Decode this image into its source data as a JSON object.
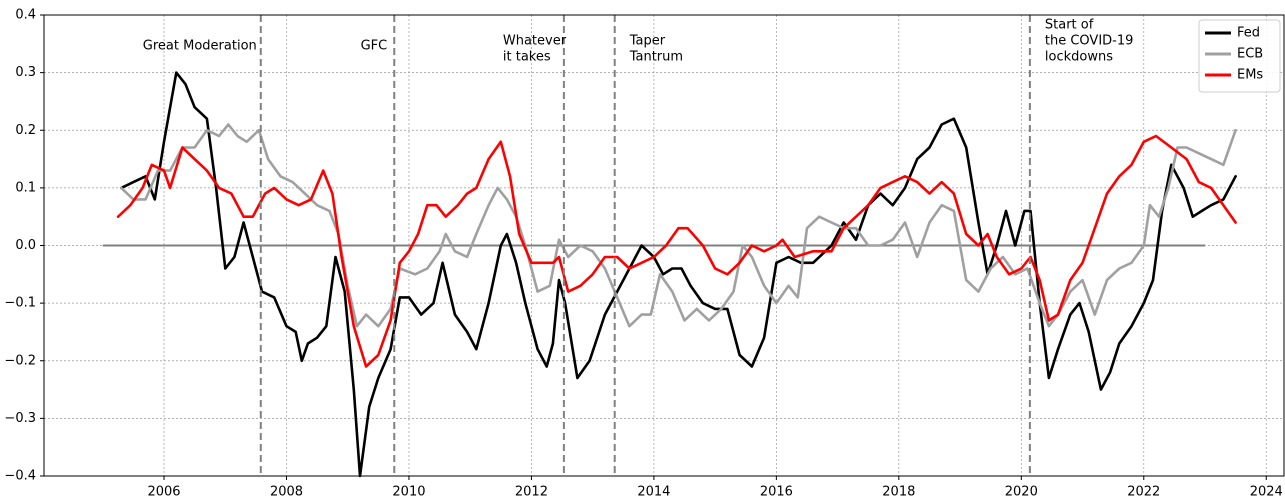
{
  "chart_data": {
    "type": "line",
    "xlim": [
      2004.04,
      2024.29
    ],
    "ylim": [
      -0.4,
      0.4
    ],
    "xticks": [
      2006,
      2008,
      2010,
      2012,
      2014,
      2016,
      2018,
      2020,
      2022,
      2024
    ],
    "yticks": [
      {
        "value": -0.4,
        "label": "−0.4"
      },
      {
        "value": -0.3,
        "label": "−0.3"
      },
      {
        "value": -0.2,
        "label": "−0.2"
      },
      {
        "value": -0.1,
        "label": "−0.1"
      },
      {
        "value": 0,
        "label": "0.0"
      },
      0.1,
      0.2,
      0.3,
      0.4
    ],
    "grid": true,
    "legend": "upper right",
    "zero_line": {
      "y": 0,
      "x": [
        2005,
        2023
      ],
      "color": "#808080"
    },
    "events": [
      {
        "x": 2007.58,
        "label": [
          "Great Moderation"
        ]
      },
      {
        "x": 2009.76,
        "label": [
          "GFC"
        ]
      },
      {
        "x": 2012.53,
        "label": [
          "Whatever",
          "it takes"
        ]
      },
      {
        "x": 2013.36,
        "label": [
          "Taper",
          "Tantrum"
        ]
      },
      {
        "x": 2020.14,
        "label": [
          "Start of",
          "the COVID-19",
          "lockdowns"
        ]
      }
    ],
    "series": [
      {
        "name": "Fed",
        "color": "#000000",
        "x": [
          2005.3,
          2005.5,
          2005.7,
          2005.85,
          2006.0,
          2006.2,
          2006.35,
          2006.5,
          2006.7,
          2006.85,
          2007.0,
          2007.15,
          2007.3,
          2007.45,
          2007.6,
          2007.8,
          2008.0,
          2008.15,
          2008.25,
          2008.35,
          2008.5,
          2008.65,
          2008.8,
          2008.95,
          2009.1,
          2009.2,
          2009.35,
          2009.5,
          2009.7,
          2009.85,
          2010.0,
          2010.2,
          2010.4,
          2010.55,
          2010.75,
          2010.95,
          2011.1,
          2011.3,
          2011.5,
          2011.6,
          2011.75,
          2011.9,
          2012.1,
          2012.25,
          2012.35,
          2012.45,
          2012.55,
          2012.75,
          2012.95,
          2013.2,
          2013.5,
          2013.8,
          2014.0,
          2014.15,
          2014.3,
          2014.45,
          2014.6,
          2014.8,
          2015.0,
          2015.2,
          2015.4,
          2015.6,
          2015.8,
          2016.0,
          2016.2,
          2016.4,
          2016.6,
          2016.9,
          2017.1,
          2017.3,
          2017.5,
          2017.7,
          2017.9,
          2018.1,
          2018.3,
          2018.5,
          2018.7,
          2018.9,
          2019.1,
          2019.3,
          2019.45,
          2019.6,
          2019.75,
          2019.9,
          2020.05,
          2020.15,
          2020.3,
          2020.45,
          2020.6,
          2020.8,
          2020.95,
          2021.1,
          2021.3,
          2021.45,
          2021.6,
          2021.8,
          2022.0,
          2022.15,
          2022.3,
          2022.45,
          2022.65,
          2022.8,
          2022.95,
          2023.1,
          2023.3,
          2023.5
        ],
        "values": [
          0.1,
          0.11,
          0.12,
          0.08,
          0.18,
          0.3,
          0.28,
          0.24,
          0.22,
          0.1,
          -0.04,
          -0.02,
          0.04,
          -0.02,
          -0.08,
          -0.09,
          -0.14,
          -0.15,
          -0.2,
          -0.17,
          -0.16,
          -0.14,
          -0.02,
          -0.08,
          -0.25,
          -0.4,
          -0.28,
          -0.23,
          -0.18,
          -0.09,
          -0.09,
          -0.12,
          -0.1,
          -0.03,
          -0.12,
          -0.15,
          -0.18,
          -0.1,
          0.0,
          0.02,
          -0.03,
          -0.1,
          -0.18,
          -0.21,
          -0.17,
          -0.06,
          -0.1,
          -0.23,
          -0.2,
          -0.12,
          -0.06,
          0.0,
          -0.02,
          -0.05,
          -0.04,
          -0.04,
          -0.07,
          -0.1,
          -0.11,
          -0.11,
          -0.19,
          -0.21,
          -0.16,
          -0.03,
          -0.02,
          -0.03,
          -0.03,
          0.0,
          0.04,
          0.01,
          0.07,
          0.09,
          0.07,
          0.1,
          0.15,
          0.17,
          0.21,
          0.22,
          0.17,
          0.04,
          -0.05,
          0.0,
          0.06,
          0.0,
          0.06,
          0.06,
          -0.1,
          -0.23,
          -0.18,
          -0.12,
          -0.1,
          -0.15,
          -0.25,
          -0.22,
          -0.17,
          -0.14,
          -0.1,
          -0.06,
          0.06,
          0.14,
          0.1,
          0.05,
          0.06,
          0.07,
          0.08,
          0.12
        ]
      },
      {
        "name": "ECB",
        "color": "#a0a0a0",
        "x": [
          2005.3,
          2005.5,
          2005.7,
          2005.9,
          2006.1,
          2006.3,
          2006.5,
          2006.7,
          2006.9,
          2007.05,
          2007.2,
          2007.35,
          2007.55,
          2007.7,
          2007.9,
          2008.1,
          2008.3,
          2008.5,
          2008.7,
          2008.85,
          2009.0,
          2009.15,
          2009.3,
          2009.5,
          2009.7,
          2009.85,
          2010.1,
          2010.3,
          2010.5,
          2010.6,
          2010.75,
          2010.95,
          2011.1,
          2011.3,
          2011.45,
          2011.6,
          2011.75,
          2011.9,
          2012.1,
          2012.3,
          2012.45,
          2012.6,
          2012.8,
          2013.0,
          2013.2,
          2013.4,
          2013.6,
          2013.8,
          2013.95,
          2014.1,
          2014.3,
          2014.5,
          2014.7,
          2014.9,
          2015.1,
          2015.3,
          2015.45,
          2015.6,
          2015.8,
          2016.0,
          2016.2,
          2016.35,
          2016.5,
          2016.7,
          2016.9,
          2017.1,
          2017.3,
          2017.5,
          2017.7,
          2017.9,
          2018.1,
          2018.3,
          2018.5,
          2018.7,
          2018.9,
          2019.1,
          2019.3,
          2019.5,
          2019.7,
          2019.9,
          2020.1,
          2020.3,
          2020.45,
          2020.6,
          2020.8,
          2021.0,
          2021.2,
          2021.4,
          2021.6,
          2021.8,
          2022.0,
          2022.1,
          2022.25,
          2022.4,
          2022.55,
          2022.7,
          2022.9,
          2023.1,
          2023.3,
          2023.5
        ],
        "values": [
          0.1,
          0.08,
          0.08,
          0.13,
          0.13,
          0.17,
          0.17,
          0.2,
          0.19,
          0.21,
          0.19,
          0.18,
          0.2,
          0.15,
          0.12,
          0.11,
          0.09,
          0.07,
          0.06,
          0.02,
          -0.07,
          -0.14,
          -0.12,
          -0.14,
          -0.11,
          -0.04,
          -0.05,
          -0.04,
          -0.01,
          0.02,
          -0.01,
          -0.02,
          0.02,
          0.07,
          0.1,
          0.08,
          0.05,
          0.0,
          -0.08,
          -0.07,
          0.01,
          -0.02,
          0.0,
          -0.01,
          -0.04,
          -0.09,
          -0.14,
          -0.12,
          -0.12,
          -0.05,
          -0.08,
          -0.13,
          -0.11,
          -0.13,
          -0.11,
          -0.08,
          0.0,
          -0.02,
          -0.07,
          -0.1,
          -0.07,
          -0.09,
          0.03,
          0.05,
          0.04,
          0.03,
          0.03,
          0.0,
          0.0,
          0.01,
          0.04,
          -0.02,
          0.04,
          0.07,
          0.06,
          -0.06,
          -0.08,
          -0.04,
          -0.02,
          -0.05,
          -0.04,
          -0.1,
          -0.14,
          -0.12,
          -0.08,
          -0.06,
          -0.12,
          -0.06,
          -0.04,
          -0.03,
          0.0,
          0.07,
          0.05,
          0.1,
          0.17,
          0.17,
          0.16,
          0.15,
          0.14,
          0.2
        ]
      },
      {
        "name": "EMs",
        "color": "#ff0000",
        "x": [
          2005.25,
          2005.45,
          2005.65,
          2005.8,
          2006.0,
          2006.1,
          2006.3,
          2006.5,
          2006.7,
          2006.9,
          2007.1,
          2007.3,
          2007.45,
          2007.65,
          2007.8,
          2008.0,
          2008.2,
          2008.4,
          2008.6,
          2008.75,
          2008.9,
          2009.1,
          2009.3,
          2009.5,
          2009.7,
          2009.85,
          2010.0,
          2010.15,
          2010.3,
          2010.45,
          2010.6,
          2010.8,
          2010.95,
          2011.1,
          2011.3,
          2011.5,
          2011.65,
          2011.8,
          2012.0,
          2012.2,
          2012.35,
          2012.45,
          2012.6,
          2012.8,
          2013.0,
          2013.2,
          2013.4,
          2013.6,
          2013.8,
          2014.0,
          2014.2,
          2014.4,
          2014.55,
          2014.8,
          2015.0,
          2015.2,
          2015.4,
          2015.6,
          2015.8,
          2016.0,
          2016.1,
          2016.3,
          2016.6,
          2016.9,
          2017.1,
          2017.3,
          2017.5,
          2017.7,
          2017.9,
          2018.1,
          2018.3,
          2018.5,
          2018.7,
          2018.9,
          2019.1,
          2019.3,
          2019.45,
          2019.6,
          2019.8,
          2020.0,
          2020.15,
          2020.3,
          2020.45,
          2020.6,
          2020.8,
          2021.0,
          2021.2,
          2021.4,
          2021.6,
          2021.8,
          2022.0,
          2022.2,
          2022.45,
          2022.7,
          2022.9,
          2023.1,
          2023.3,
          2023.5
        ],
        "values": [
          0.05,
          0.07,
          0.1,
          0.14,
          0.13,
          0.1,
          0.17,
          0.15,
          0.13,
          0.1,
          0.09,
          0.05,
          0.05,
          0.09,
          0.1,
          0.08,
          0.07,
          0.08,
          0.13,
          0.09,
          -0.02,
          -0.14,
          -0.21,
          -0.19,
          -0.13,
          -0.03,
          -0.01,
          0.02,
          0.07,
          0.07,
          0.05,
          0.07,
          0.09,
          0.1,
          0.15,
          0.18,
          0.12,
          0.02,
          -0.03,
          -0.03,
          -0.03,
          -0.02,
          -0.08,
          -0.07,
          -0.05,
          -0.02,
          -0.02,
          -0.04,
          -0.03,
          -0.02,
          0.0,
          0.03,
          0.03,
          0.0,
          -0.04,
          -0.05,
          -0.03,
          0.0,
          -0.01,
          0.0,
          0.01,
          -0.02,
          -0.01,
          -0.01,
          0.03,
          0.05,
          0.07,
          0.1,
          0.11,
          0.12,
          0.11,
          0.09,
          0.11,
          0.09,
          0.02,
          0.0,
          0.02,
          -0.02,
          -0.05,
          -0.04,
          -0.02,
          -0.06,
          -0.13,
          -0.12,
          -0.06,
          -0.03,
          0.03,
          0.09,
          0.12,
          0.14,
          0.18,
          0.19,
          0.17,
          0.15,
          0.11,
          0.1,
          0.07,
          0.04
        ]
      }
    ]
  }
}
